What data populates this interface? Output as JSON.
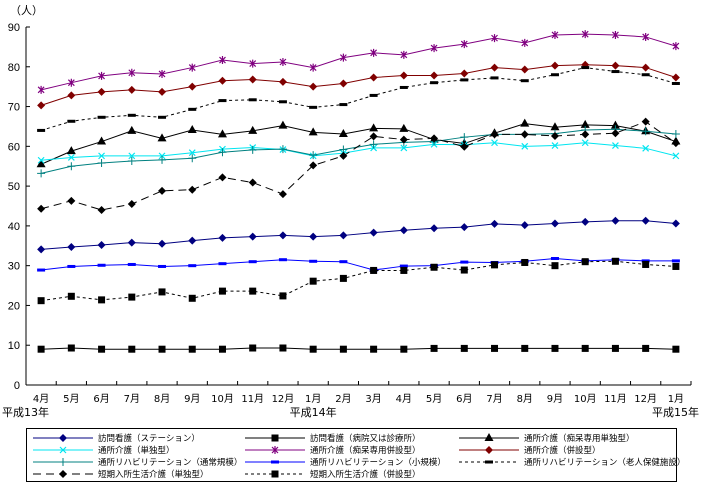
{
  "chart_data": {
    "type": "line",
    "title": "",
    "ylabel": "（人）",
    "xlabel": "",
    "ylim": [
      0,
      90
    ],
    "yticks": [
      0,
      10,
      20,
      30,
      40,
      50,
      60,
      70,
      80,
      90
    ],
    "grid": false,
    "legend_position": "bottom",
    "categories": [
      "4月",
      "5月",
      "6月",
      "7月",
      "8月",
      "9月",
      "10月",
      "11月",
      "12月",
      "1月",
      "2月",
      "3月",
      "4月",
      "5月",
      "6月",
      "7月",
      "8月",
      "9月",
      "10月",
      "11月",
      "12月",
      "1月"
    ],
    "era_labels": [
      {
        "category_index": 0,
        "text": "平成13年"
      },
      {
        "category_index": 9,
        "text": "平成14年"
      },
      {
        "category_index": 21,
        "text": "平成15年"
      }
    ],
    "series": [
      {
        "name": "訪問看護（ステーション）",
        "color": "#000080",
        "marker": "diamond",
        "dash": "solid",
        "values": [
          34.1,
          34.7,
          35.2,
          35.8,
          35.5,
          36.3,
          37,
          37.3,
          37.6,
          37.3,
          37.6,
          38.3,
          38.9,
          39.4,
          39.7,
          40.5,
          40.2,
          40.6,
          41,
          41.3,
          41.3,
          40.6
        ]
      },
      {
        "name": "訪問看護（病院又は診療所）",
        "color": "#000000",
        "marker": "square",
        "dash": "solid",
        "values": [
          9,
          9.3,
          9,
          9,
          9,
          9,
          9,
          9.3,
          9.3,
          9,
          9,
          9,
          9,
          9.2,
          9.2,
          9.2,
          9.2,
          9.2,
          9.2,
          9.2,
          9.2,
          9
        ]
      },
      {
        "name": "通所介護（痴呆専用単独型）",
        "color": "#000000",
        "marker": "triangle",
        "dash": "solid",
        "values": [
          55.5,
          58.8,
          61.2,
          63.9,
          62,
          64.1,
          63,
          63.9,
          65.2,
          63.5,
          63.1,
          64.5,
          64.4,
          61.7,
          60.7,
          63.3,
          65.7,
          64.8,
          65.4,
          65.2,
          63.8,
          61.2
        ]
      },
      {
        "name": "通所介護（単独型）",
        "color": "#00e5f0",
        "marker": "x",
        "dash": "solid",
        "values": [
          56.5,
          57.2,
          57.6,
          57.6,
          57.6,
          58.4,
          59.3,
          59.7,
          59.2,
          57.6,
          58.3,
          59.6,
          59.6,
          60.5,
          60.4,
          60.9,
          60,
          60.2,
          60.9,
          60.2,
          59.5,
          57.6
        ]
      },
      {
        "name": "通所介護（痴呆専用併設型）",
        "color": "#800080",
        "marker": "star",
        "dash": "solid",
        "values": [
          74.2,
          76,
          77.7,
          78.5,
          78.2,
          79.8,
          81.7,
          80.8,
          81.2,
          79.8,
          82.3,
          83.5,
          83,
          84.7,
          85.7,
          87.2,
          86,
          88,
          88.2,
          88,
          87.5,
          85.2
        ]
      },
      {
        "name": "通所介護（併設型）",
        "color": "#800000",
        "marker": "diamond",
        "dash": "solid",
        "values": [
          70.3,
          72.8,
          73.7,
          74.2,
          73.7,
          75,
          76.5,
          76.8,
          76.2,
          75,
          75.8,
          77.3,
          77.8,
          77.8,
          78.3,
          79.8,
          79.3,
          80.3,
          80.5,
          80.3,
          79.8,
          77.3
        ]
      },
      {
        "name": "通所リハビリテーション（通常規模）",
        "color": "#008080",
        "marker": "plus",
        "dash": "solid",
        "values": [
          53.2,
          55,
          55.8,
          56.3,
          56.6,
          57,
          58.5,
          59.1,
          59.3,
          57.8,
          59.2,
          60.5,
          61,
          61.2,
          62.3,
          63,
          63,
          63.2,
          64.1,
          64.3,
          63.8,
          63.1
        ]
      },
      {
        "name": "通所リハビリテーション（小規模）",
        "color": "#0000ff",
        "marker": "dash",
        "dash": "solid",
        "values": [
          28.9,
          29.8,
          30.1,
          30.3,
          29.8,
          30,
          30.5,
          31,
          31.5,
          31.1,
          31,
          28.9,
          29.9,
          30,
          30.9,
          30.8,
          31.1,
          31.8,
          31.2,
          31.5,
          31.2,
          31.2
        ]
      },
      {
        "name": "通所リハビリテーション（老人保健施設）",
        "color": "#000000",
        "marker": "dash",
        "dash": "dashed",
        "values": [
          64,
          66.3,
          67.3,
          67.8,
          67.3,
          69.3,
          71.5,
          71.7,
          71.2,
          69.8,
          70.5,
          72.8,
          74.8,
          76,
          76.7,
          77.2,
          76.5,
          78,
          79.8,
          78.8,
          78,
          75.8
        ]
      },
      {
        "name": "短期入所生活介護（単独型）",
        "color": "#000000",
        "marker": "diamond",
        "dash": "longdash",
        "values": [
          44.3,
          46.3,
          44,
          45.5,
          48.8,
          49.1,
          52.2,
          50.9,
          48,
          55.2,
          57.6,
          62.5,
          61.7,
          62,
          59.9,
          63,
          63,
          62.6,
          63,
          63.3,
          66.2,
          60.8
        ]
      },
      {
        "name": "短期入所生活介護（併設型）",
        "color": "#000000",
        "marker": "square",
        "dash": "dashed",
        "values": [
          21.2,
          22.3,
          21.4,
          22.1,
          23.4,
          21.8,
          23.6,
          23.6,
          22.4,
          26.1,
          26.8,
          28.8,
          28.8,
          29.6,
          28.9,
          30.2,
          30.8,
          30,
          31,
          31.1,
          30.3,
          29.8
        ]
      }
    ]
  }
}
